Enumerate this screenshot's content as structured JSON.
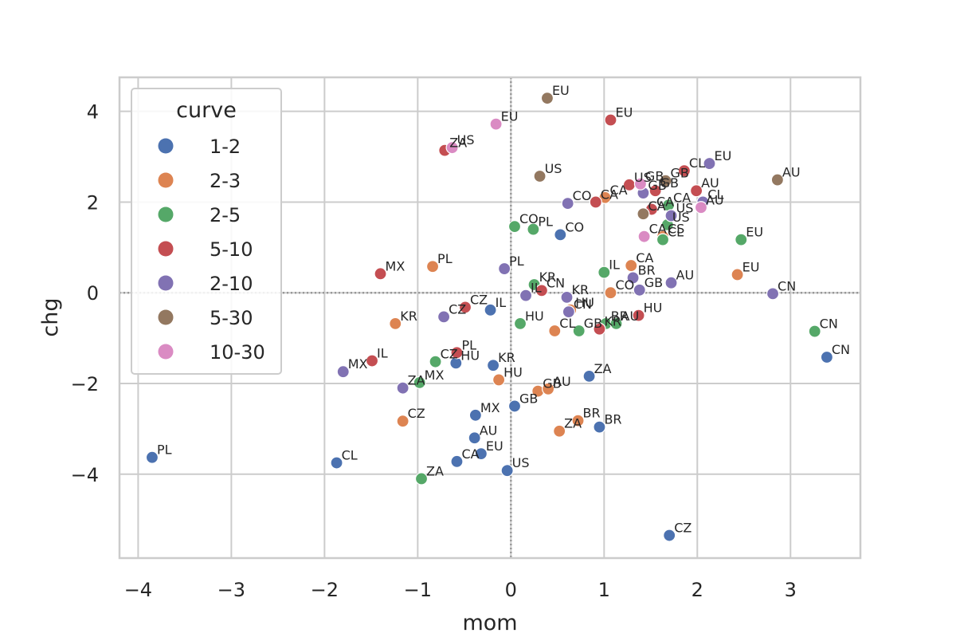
{
  "chart_data": {
    "type": "scatter",
    "xlabel": "mom",
    "ylabel": "chg",
    "xlim": [
      -4.2,
      3.75
    ],
    "ylim": [
      -5.85,
      4.75
    ],
    "xticks": [
      "−4",
      "−3",
      "−2",
      "−1",
      "0",
      "1",
      "2",
      "3"
    ],
    "yticks": [
      "−4",
      "−2",
      "0",
      "2",
      "4"
    ],
    "grid": true,
    "reference_lines": {
      "x": 0,
      "y": 0
    },
    "legend": {
      "title": "curve",
      "placement": "top-left"
    },
    "series": [
      {
        "name": "1-2",
        "color": "#4c72b0",
        "points": [
          {
            "x": -3.85,
            "y": -3.63,
            "label": "PL"
          },
          {
            "x": -1.87,
            "y": -3.75,
            "label": "CL"
          },
          {
            "x": -0.58,
            "y": -3.72,
            "label": "CA"
          },
          {
            "x": -0.32,
            "y": -3.55,
            "label": "EU"
          },
          {
            "x": -0.04,
            "y": -3.92,
            "label": "US"
          },
          {
            "x": -0.39,
            "y": -3.2,
            "label": "AU"
          },
          {
            "x": -0.38,
            "y": -2.7,
            "label": "MX"
          },
          {
            "x": 0.04,
            "y": -2.5,
            "label": "GB"
          },
          {
            "x": -0.59,
            "y": -1.55,
            "label": "HU"
          },
          {
            "x": -0.19,
            "y": -1.6,
            "label": "KR"
          },
          {
            "x": -0.22,
            "y": -0.38,
            "label": "IL"
          },
          {
            "x": 0.53,
            "y": 1.28,
            "label": "CO"
          },
          {
            "x": 0.84,
            "y": -1.84,
            "label": "ZA"
          },
          {
            "x": 0.95,
            "y": -2.96,
            "label": "BR"
          },
          {
            "x": 1.7,
            "y": -5.35,
            "label": "CZ"
          },
          {
            "x": 3.39,
            "y": -1.42,
            "label": "CN"
          }
        ]
      },
      {
        "name": "2-3",
        "color": "#dd8452",
        "points": [
          {
            "x": -0.84,
            "y": 0.58,
            "label": "PL"
          },
          {
            "x": -1.24,
            "y": -0.68,
            "label": "KR"
          },
          {
            "x": -1.16,
            "y": -2.83,
            "label": "CZ"
          },
          {
            "x": -0.13,
            "y": -1.92,
            "label": "HU"
          },
          {
            "x": 0.29,
            "y": -2.17,
            "label": "GB"
          },
          {
            "x": 0.4,
            "y": -2.12,
            "label": "AU"
          },
          {
            "x": 0.47,
            "y": -0.84,
            "label": "CL"
          },
          {
            "x": 0.64,
            "y": -0.38,
            "label": "HU"
          },
          {
            "x": 0.52,
            "y": -3.05,
            "label": "ZA"
          },
          {
            "x": 0.72,
            "y": -2.82,
            "label": "BR"
          },
          {
            "x": 1.07,
            "y": 0.0,
            "label": "CO"
          },
          {
            "x": 1.29,
            "y": 0.6,
            "label": "CA"
          },
          {
            "x": 1.63,
            "y": 1.24,
            "label": "CS"
          },
          {
            "x": 2.43,
            "y": 0.4,
            "label": "EU"
          },
          {
            "x": 1.01,
            "y": 2.1,
            "label": "CA"
          }
        ]
      },
      {
        "name": "2-5",
        "color": "#55a868",
        "points": [
          {
            "x": -0.96,
            "y": -4.1,
            "label": "ZA"
          },
          {
            "x": -0.98,
            "y": -1.98,
            "label": "MX"
          },
          {
            "x": -0.81,
            "y": -1.52,
            "label": "CZ"
          },
          {
            "x": 0.1,
            "y": -0.68,
            "label": "HU"
          },
          {
            "x": 0.25,
            "y": 0.18,
            "label": "KR"
          },
          {
            "x": 0.04,
            "y": 1.46,
            "label": "CO"
          },
          {
            "x": 0.24,
            "y": 1.4,
            "label": "PL"
          },
          {
            "x": 1.0,
            "y": 0.45,
            "label": "IL"
          },
          {
            "x": 0.73,
            "y": -0.84,
            "label": "GB"
          },
          {
            "x": 1.02,
            "y": -0.68,
            "label": "BR"
          },
          {
            "x": 1.13,
            "y": -0.68,
            "label": "AU"
          },
          {
            "x": 1.63,
            "y": 1.17,
            "label": "CL"
          },
          {
            "x": 1.68,
            "y": 1.5,
            "label": "US"
          },
          {
            "x": 1.69,
            "y": 1.93,
            "label": "CA"
          },
          {
            "x": 2.47,
            "y": 1.17,
            "label": "EU"
          },
          {
            "x": 3.26,
            "y": -0.85,
            "label": "CN"
          }
        ]
      },
      {
        "name": "5-10",
        "color": "#c44e52",
        "points": [
          {
            "x": -1.4,
            "y": 0.42,
            "label": "MX"
          },
          {
            "x": -1.49,
            "y": -1.5,
            "label": "IL"
          },
          {
            "x": -0.58,
            "y": -1.32,
            "label": "PL"
          },
          {
            "x": -0.49,
            "y": -0.32,
            "label": "CZ"
          },
          {
            "x": -0.71,
            "y": 3.14,
            "label": "ZA"
          },
          {
            "x": 0.33,
            "y": 0.05,
            "label": "CN"
          },
          {
            "x": 0.95,
            "y": -0.8,
            "label": "KR"
          },
          {
            "x": 1.37,
            "y": -0.5,
            "label": "HU"
          },
          {
            "x": 0.91,
            "y": 2.0,
            "label": "CA"
          },
          {
            "x": 1.07,
            "y": 3.81,
            "label": "EU"
          },
          {
            "x": 1.27,
            "y": 2.38,
            "label": "US"
          },
          {
            "x": 1.55,
            "y": 2.25,
            "label": "GB"
          },
          {
            "x": 1.51,
            "y": 1.84,
            "label": "CA"
          },
          {
            "x": 1.86,
            "y": 2.69,
            "label": "CL"
          },
          {
            "x": 1.99,
            "y": 2.25,
            "label": "AU"
          }
        ]
      },
      {
        "name": "2-10",
        "color": "#8172b3",
        "points": [
          {
            "x": -1.8,
            "y": -1.74,
            "label": "MX"
          },
          {
            "x": -1.16,
            "y": -2.1,
            "label": "ZA"
          },
          {
            "x": -0.72,
            "y": -0.53,
            "label": "CZ"
          },
          {
            "x": -0.07,
            "y": 0.53,
            "label": "PL"
          },
          {
            "x": 0.16,
            "y": -0.06,
            "label": "IL"
          },
          {
            "x": 0.6,
            "y": -0.1,
            "label": "KR"
          },
          {
            "x": 0.62,
            "y": -0.42,
            "label": "CN"
          },
          {
            "x": 0.61,
            "y": 1.97,
            "label": "CO"
          },
          {
            "x": 1.31,
            "y": 0.33,
            "label": "BR"
          },
          {
            "x": 1.38,
            "y": 0.06,
            "label": "GB"
          },
          {
            "x": 1.42,
            "y": 2.2,
            "label": "GB"
          },
          {
            "x": 1.72,
            "y": 0.22,
            "label": "AU"
          },
          {
            "x": 1.72,
            "y": 1.7,
            "label": "US"
          },
          {
            "x": 2.06,
            "y": 2.0,
            "label": "CL"
          },
          {
            "x": 2.13,
            "y": 2.85,
            "label": "EU"
          },
          {
            "x": 2.81,
            "y": -0.02,
            "label": "CN"
          }
        ]
      },
      {
        "name": "5-30",
        "color": "#937860",
        "points": [
          {
            "x": 0.39,
            "y": 4.29,
            "label": "EU"
          },
          {
            "x": 0.31,
            "y": 2.57,
            "label": "US"
          },
          {
            "x": 1.42,
            "y": 1.74,
            "label": "CA"
          },
          {
            "x": 1.66,
            "y": 2.47,
            "label": "GB"
          },
          {
            "x": 2.86,
            "y": 2.49,
            "label": "AU"
          }
        ]
      },
      {
        "name": "10-30",
        "color": "#da8bc3",
        "points": [
          {
            "x": -0.16,
            "y": 3.72,
            "label": "EU"
          },
          {
            "x": -0.63,
            "y": 3.2,
            "label": "US"
          },
          {
            "x": 1.43,
            "y": 1.24,
            "label": "CA"
          },
          {
            "x": 1.39,
            "y": 2.4,
            "label": "GB"
          },
          {
            "x": 2.04,
            "y": 1.88,
            "label": "AU"
          }
        ]
      }
    ]
  }
}
